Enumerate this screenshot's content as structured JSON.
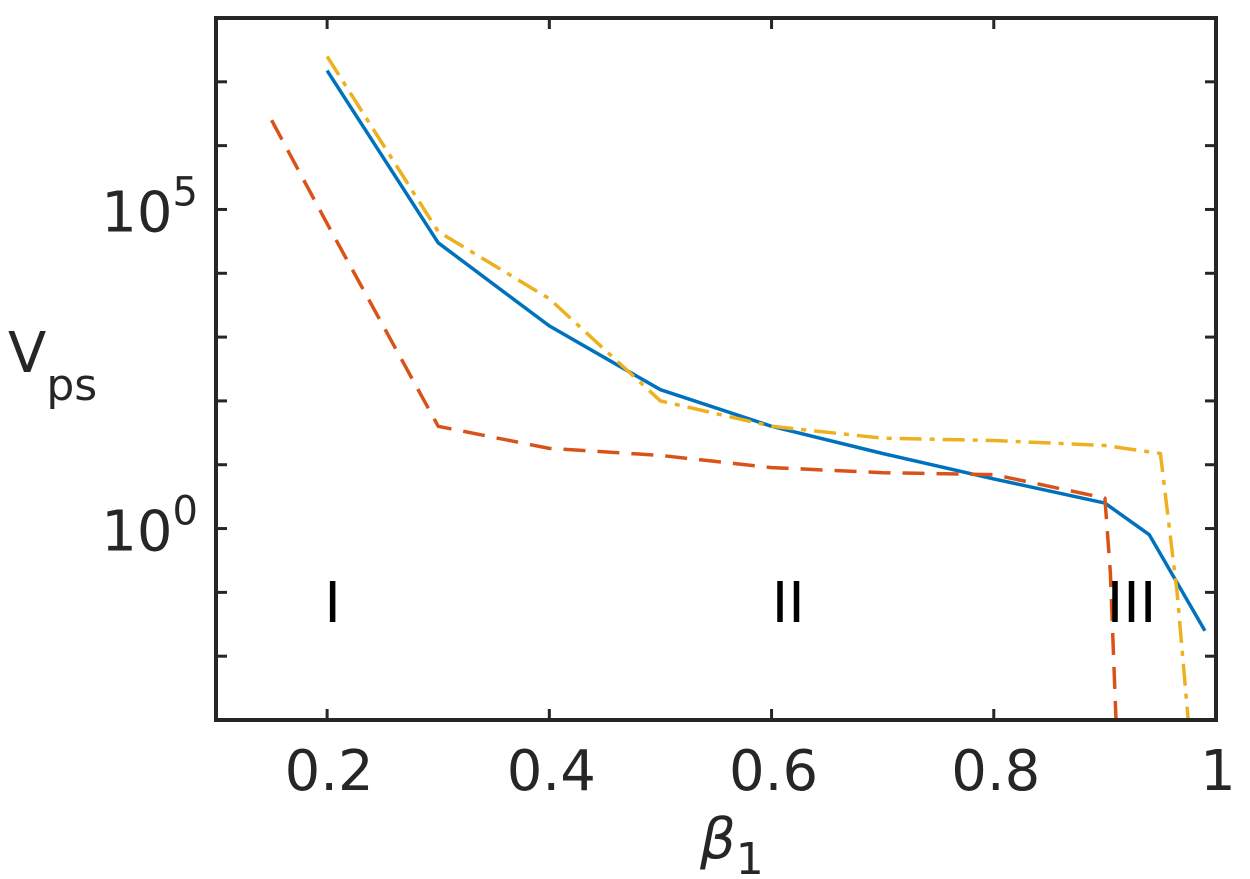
{
  "chart_data": {
    "type": "line",
    "xlabel": "β",
    "xlabel_sub": "1",
    "ylabel": "V",
    "ylabel_sub": "ps",
    "xlim": [
      0.1,
      1.0
    ],
    "ylim": [
      0.001,
      100000000
    ],
    "yscale": "log",
    "grid": false,
    "xticks": [
      {
        "value": 0.2,
        "label": "0.2"
      },
      {
        "value": 0.4,
        "label": "0.4"
      },
      {
        "value": 0.6,
        "label": "0.6"
      },
      {
        "value": 0.8,
        "label": "0.8"
      },
      {
        "value": 1.0,
        "label": "1"
      }
    ],
    "yticks": [
      {
        "value": 1,
        "base": "10",
        "exp": "0"
      },
      {
        "value": 100000,
        "base": "10",
        "exp": "5"
      }
    ],
    "annotations": [
      {
        "text": "I",
        "x": 0.205,
        "y": 0.07
      },
      {
        "text": "II",
        "x": 0.615,
        "y": 0.07
      },
      {
        "text": "III",
        "x": 0.924,
        "y": 0.07
      }
    ],
    "series": [
      {
        "color": "#0072BD",
        "dash": "solid",
        "x": [
          0.2,
          0.3,
          0.4,
          0.5,
          0.6,
          0.7,
          0.8,
          0.9,
          0.94,
          0.99
        ],
        "y": [
          15000000,
          30000,
          1500,
          150,
          40,
          15,
          6,
          2.5,
          0.8,
          0.025
        ]
      },
      {
        "color": "#D95319",
        "dash": "dashed",
        "x": [
          0.15,
          0.2,
          0.3,
          0.4,
          0.5,
          0.6,
          0.7,
          0.8,
          0.9,
          0.905,
          0.91
        ],
        "y": [
          2500000,
          60000,
          40,
          18,
          14,
          9,
          7.5,
          7,
          3,
          0.2,
          0.001
        ]
      },
      {
        "color": "#EDB120",
        "dash": "dashdot",
        "x": [
          0.2,
          0.3,
          0.4,
          0.5,
          0.6,
          0.7,
          0.8,
          0.9,
          0.95,
          0.965,
          0.975
        ],
        "y": [
          25000000,
          45000,
          4000,
          100,
          40,
          26,
          24,
          20,
          15,
          0.1,
          0.001
        ]
      }
    ]
  }
}
